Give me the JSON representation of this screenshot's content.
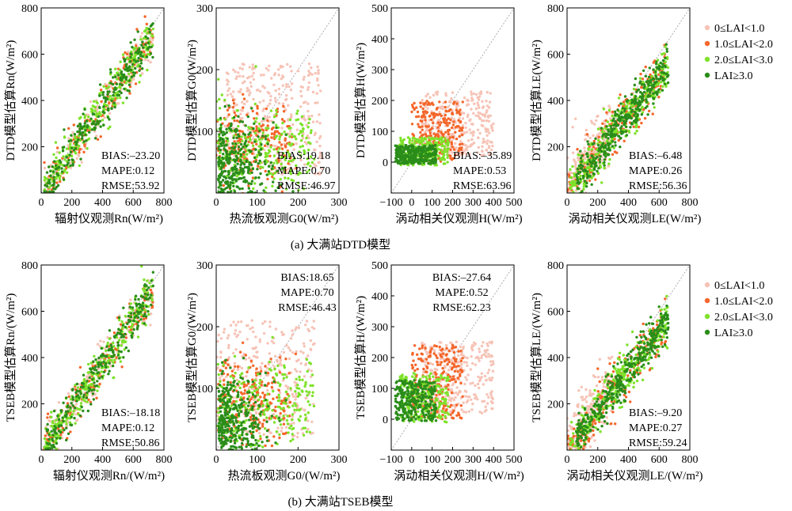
{
  "captions": {
    "a": "(a) 大满站DTD模型",
    "b": "(b) 大满站TSEB模型"
  },
  "legend": [
    {
      "label": "0≤LAI<1.0",
      "color": "#f6c3b6"
    },
    {
      "label": "1.0≤LAI<2.0",
      "color": "#f4662a"
    },
    {
      "label": "2.0≤LAI<3.0",
      "color": "#7ee22a"
    },
    {
      "label": "LAI≥3.0",
      "color": "#2a8d1a"
    }
  ],
  "chart_data": [
    {
      "id": "a-rn",
      "type": "scatter",
      "row": "a",
      "variable": "Rn",
      "xlabel": "辐射仪观测Rn(W/m²)",
      "ylabel": "DTD模型估算Rn(W/m²)",
      "xlim": [
        0,
        800
      ],
      "ylim": [
        0,
        800
      ],
      "xticks": [
        "0",
        "200",
        "400",
        "600",
        "800"
      ],
      "yticks": [
        "200",
        "400",
        "600",
        "800"
      ],
      "stats": {
        "BIAS": "BIAS:–23.20",
        "MAPE": "MAPE:0.12",
        "RMSE": "RMSE:53.92"
      }
    },
    {
      "id": "a-g0",
      "type": "scatter",
      "row": "a",
      "variable": "G0",
      "xlabel": "热流板观测G0(W/m²)",
      "ylabel": "DTD模型估算G0(W/m²)",
      "xlim": [
        0,
        300
      ],
      "ylim": [
        0,
        300
      ],
      "xticks": [
        "0",
        "100",
        "200",
        "300"
      ],
      "yticks": [
        "100",
        "200",
        "300"
      ],
      "stats": {
        "BIAS": "BIAS:19.18",
        "MAPE": "MAPE:0.70",
        "RMSE": "RMSE:46.97"
      }
    },
    {
      "id": "a-h",
      "type": "scatter",
      "row": "a",
      "variable": "H",
      "xlabel": "涡动相关仪观测H(W/m²)",
      "ylabel": "DTD模型估算H(W/m²)",
      "xlim": [
        -100,
        500
      ],
      "ylim": [
        -100,
        500
      ],
      "xticks": [
        "−100",
        "0",
        "100",
        "200",
        "300",
        "400",
        "500"
      ],
      "yticks": [
        "0",
        "100",
        "200",
        "300",
        "400",
        "500"
      ],
      "stats": {
        "BIAS": "BIAS:–35.89",
        "MAPE": "MAPE:0.53",
        "RMSE": "RMSE:63.96"
      }
    },
    {
      "id": "a-le",
      "type": "scatter",
      "row": "a",
      "variable": "LE",
      "xlabel": "涡动相关仪观测LE(W/m²)",
      "ylabel": "DTD模型估算LE(W/m²)",
      "xlim": [
        0,
        800
      ],
      "ylim": [
        0,
        800
      ],
      "xticks": [
        "0",
        "200",
        "400",
        "600",
        "800"
      ],
      "yticks": [
        "200",
        "400",
        "600",
        "800"
      ],
      "stats": {
        "BIAS": "BIAS:–6.48",
        "MAPE": "MAPE:0.26",
        "RMSE": "RMSE:56.36"
      }
    },
    {
      "id": "b-rn",
      "type": "scatter",
      "row": "b",
      "variable": "Rn",
      "xlabel": "辐射仪观测Rn/(W/m²)",
      "ylabel": "TSEB模型估算Rn/(W/m²)",
      "xlim": [
        0,
        800
      ],
      "ylim": [
        0,
        800
      ],
      "xticks": [
        "0",
        "200",
        "400",
        "600",
        "800"
      ],
      "yticks": [
        "200",
        "400",
        "600",
        "800"
      ],
      "stats": {
        "BIAS": "BIAS:–18.18",
        "MAPE": "MAPE:0.12",
        "RMSE": "RMSE:50.86"
      }
    },
    {
      "id": "b-g0",
      "type": "scatter",
      "row": "b",
      "variable": "G0",
      "xlabel": "热流板观测G0/(W/m²)",
      "ylabel": "TSEB模型估算G0/(W/m²)",
      "xlim": [
        0,
        300
      ],
      "ylim": [
        0,
        300
      ],
      "xticks": [
        "0",
        "100",
        "200",
        "300"
      ],
      "yticks": [
        "100",
        "200",
        "300"
      ],
      "stats": {
        "BIAS": "BIAS:18.65",
        "MAPE": "MAPE:0.70",
        "RMSE": "RMSE:46.43"
      }
    },
    {
      "id": "b-h",
      "type": "scatter",
      "row": "b",
      "variable": "H",
      "xlabel": "涡动相关仪观测H/(W/m²)",
      "ylabel": "TSEB模型估算H/(W/m²)",
      "xlim": [
        -100,
        500
      ],
      "ylim": [
        -100,
        500
      ],
      "xticks": [
        "−100",
        "0",
        "100",
        "200",
        "300",
        "400",
        "500"
      ],
      "yticks": [
        "0",
        "100",
        "200",
        "300",
        "400",
        "500"
      ],
      "stats": {
        "BIAS": "BIAS:–27.64",
        "MAPE": "MAPE:0.52",
        "RMSE": "RMSE:62.23"
      }
    },
    {
      "id": "b-le",
      "type": "scatter",
      "row": "b",
      "variable": "LE",
      "xlabel": "涡动相关仪观测LE/(W/m²)",
      "ylabel": "TSEB模型估算LE/(W/m²)",
      "xlim": [
        0,
        800
      ],
      "ylim": [
        0,
        800
      ],
      "xticks": [
        "0",
        "200",
        "400",
        "600",
        "800"
      ],
      "yticks": [
        "200",
        "400",
        "600",
        "800"
      ],
      "stats": {
        "BIAS": "BIAS:–9.20",
        "MAPE": "MAPE:0.27",
        "RMSE": "RMSE:59.24"
      }
    }
  ]
}
